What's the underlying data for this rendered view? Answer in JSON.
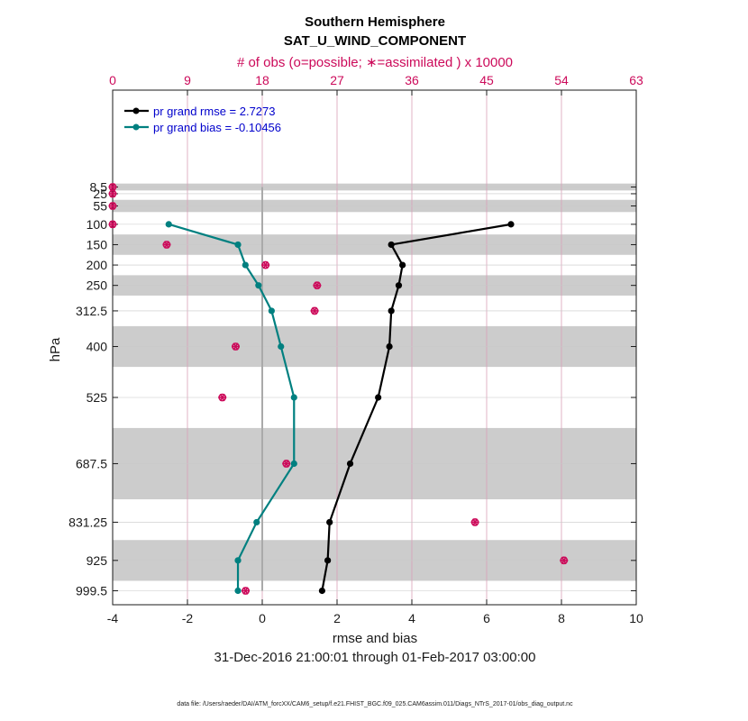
{
  "chart_data": {
    "type": "line",
    "title": "Southern Hemisphere",
    "subtitle": "SAT_U_WIND_COMPONENT",
    "top_axis_label": "# of obs (o=possible; ∗=assimilated ) x 10000",
    "xlabel": "rmse and bias",
    "ylabel": "hPa",
    "date_range": "31-Dec-2016 21:00:01 through 01-Feb-2017 03:00:00",
    "footer": "data file: /Users/raeder/DAI/ATM_forcXX/CAM6_setup/f.e21.FHIST_BGC.f09_025.CAM6assim.011/Diags_NTrS_2017-01/obs_diag_output.nc",
    "xlim": [
      -4,
      10
    ],
    "x_ticks": [
      -4,
      -2,
      0,
      2,
      4,
      6,
      8,
      10
    ],
    "top_xlim": [
      0,
      63
    ],
    "top_ticks": [
      0,
      9,
      18,
      27,
      36,
      45,
      54,
      63
    ],
    "levels": [
      8.5,
      25,
      55,
      100,
      150,
      200,
      250,
      312.5,
      400,
      525,
      687.5,
      831.25,
      925,
      999.5
    ],
    "level_labels": [
      "8.5",
      "25",
      "55",
      "100",
      "150",
      "200",
      "250",
      "312.5",
      "400",
      "525",
      "687.5",
      "831.25",
      "925",
      "999.5"
    ],
    "bands": [
      [
        0,
        17
      ],
      [
        40,
        70
      ],
      [
        125,
        175
      ],
      [
        225,
        275
      ],
      [
        350,
        450
      ],
      [
        600,
        775
      ],
      [
        875,
        975
      ]
    ],
    "legend": [
      {
        "label": "pr grand rmse = 2.7273",
        "color": "#000000"
      },
      {
        "label": "pr grand bias = -0.10456",
        "color": "#008080"
      }
    ],
    "series": [
      {
        "name": "rmse",
        "color": "#000000",
        "points": [
          [
            6.65,
            100
          ],
          [
            3.45,
            150
          ],
          [
            3.75,
            200
          ],
          [
            3.65,
            250
          ],
          [
            3.45,
            312.5
          ],
          [
            3.4,
            400
          ],
          [
            3.1,
            525
          ],
          [
            2.35,
            687.5
          ],
          [
            1.8,
            831.25
          ],
          [
            1.75,
            925
          ],
          [
            1.6,
            999.5
          ]
        ]
      },
      {
        "name": "bias",
        "color": "#008080",
        "points": [
          [
            -2.5,
            100
          ],
          [
            -0.65,
            150
          ],
          [
            -0.45,
            200
          ],
          [
            -0.1,
            250
          ],
          [
            0.25,
            312.5
          ],
          [
            0.5,
            400
          ],
          [
            0.85,
            525
          ],
          [
            0.85,
            687.5
          ],
          [
            -0.15,
            831.25
          ],
          [
            -0.65,
            925
          ],
          [
            -0.65,
            999.5
          ]
        ]
      }
    ],
    "obs_counts": {
      "color": "#cc0a5a",
      "units": "x 10000",
      "possible": [
        0,
        0,
        0,
        0,
        6.5,
        18.4,
        24.6,
        24.3,
        14.8,
        13.2,
        20.9,
        43.6,
        54.3,
        16.0
      ],
      "assimilated": [
        0,
        0,
        0,
        0,
        6.5,
        18.4,
        24.6,
        24.3,
        14.8,
        13.2,
        20.9,
        43.6,
        54.3,
        16.0
      ]
    }
  }
}
